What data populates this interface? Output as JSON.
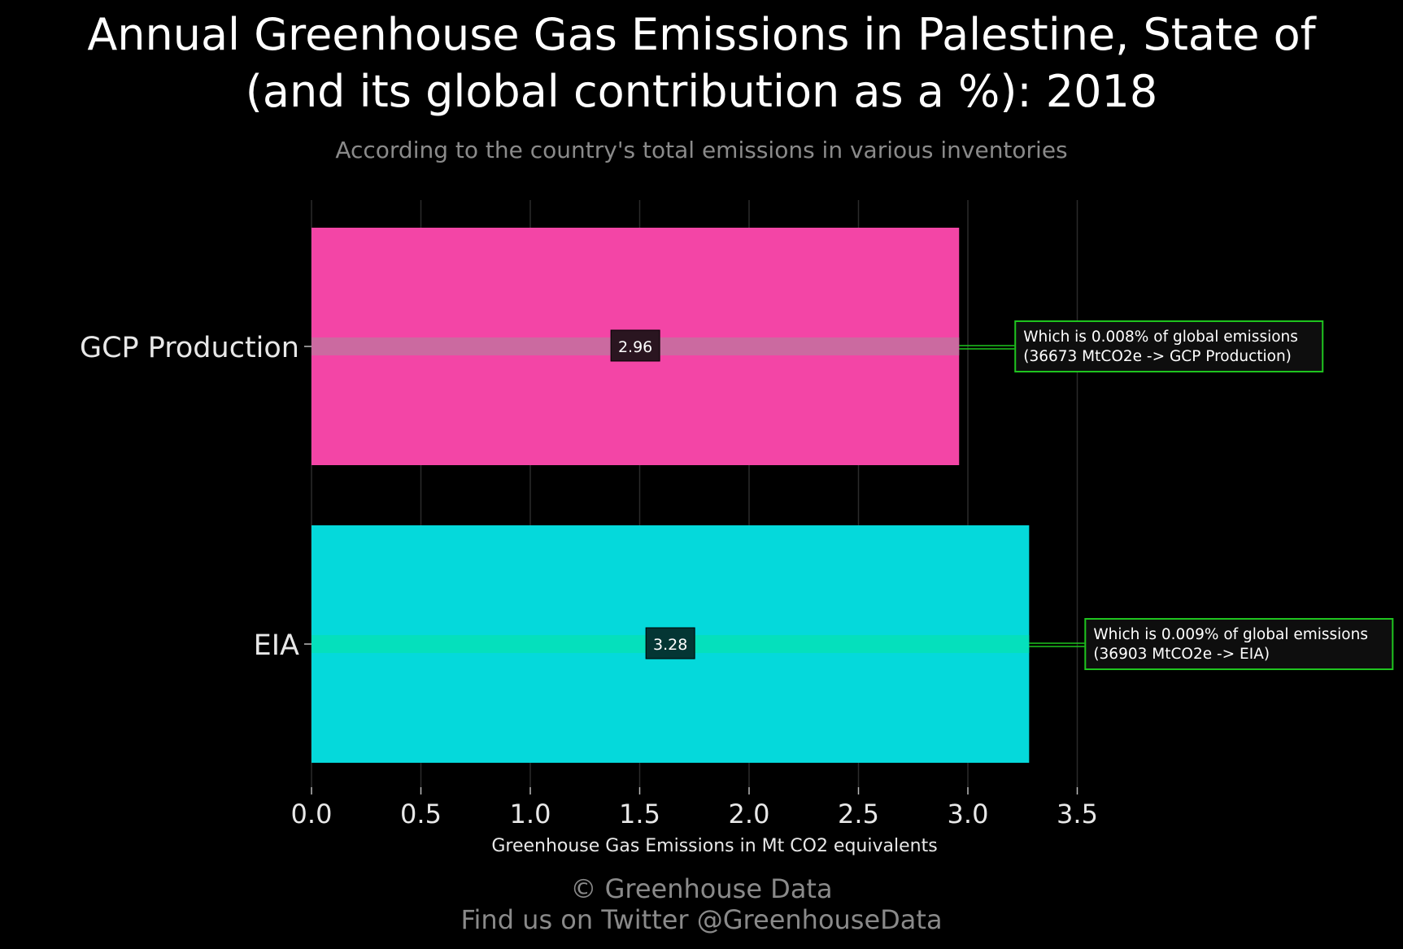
{
  "chart_title_line1": "Annual Greenhouse Gas Emissions in Palestine, State of",
  "chart_title_line2": "(and its global contribution as a %): 2018",
  "chart_subtitle": "According to the country's total emissions in various inventories",
  "footer": {
    "copyright": "© Greenhouse Data",
    "twitter": "Find us on Twitter @GreenhouseData"
  },
  "colors": {
    "gcp_bar": "#f345a6",
    "gcp_midline": "#c76ea0",
    "eia_bar": "#05d9db",
    "eia_midline": "#06e0b8",
    "annotation_border": "#1fc41f",
    "grid": "#2b2b2b"
  },
  "chart_data": {
    "type": "bar",
    "orientation": "horizontal",
    "categories": [
      "GCP Production",
      "EIA"
    ],
    "values": [
      2.96,
      3.28
    ],
    "value_labels": [
      "2.96",
      "3.28"
    ],
    "annotations": [
      {
        "line1": "Which is 0.008% of global emissions",
        "line2": "(36673 MtCO2e -> GCP Production)"
      },
      {
        "line1": "Which is 0.009% of global emissions",
        "line2": "(36903 MtCO2e -> EIA)"
      }
    ],
    "xlabel": "Greenhouse Gas Emissions in Mt CO2 equivalents",
    "ylabel": "",
    "xlim": [
      0,
      3.5
    ],
    "xticks": [
      0,
      0.5,
      1,
      1.5,
      2,
      2.5,
      3,
      3.5
    ],
    "xtick_labels": [
      "0.0",
      "0.5",
      "1.0",
      "1.5",
      "2.0",
      "2.5",
      "3.0",
      "3.5"
    ],
    "grid": true,
    "legend": "none"
  }
}
